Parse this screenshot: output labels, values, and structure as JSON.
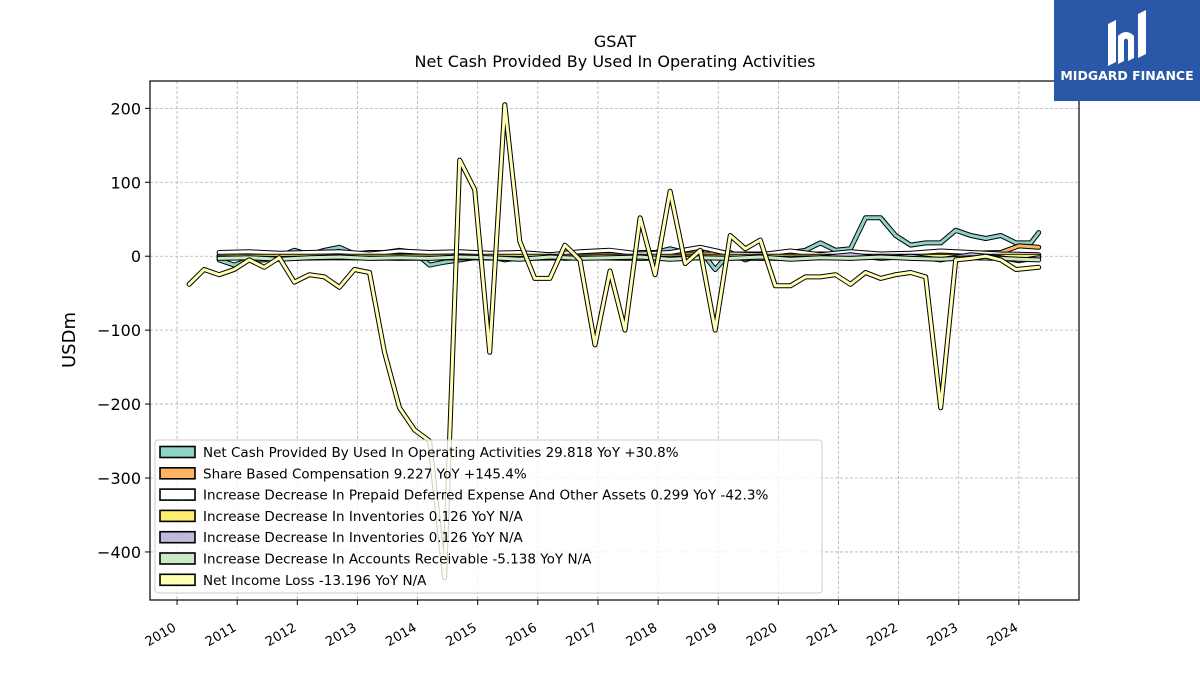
{
  "brand": {
    "name": "MIDGARD FINANCE",
    "color": "#2b57a8",
    "icon": "mf-monogram-icon"
  },
  "chart_data": {
    "type": "line",
    "title": "GSAT",
    "subtitle": "Net Cash Provided By Used In Operating Activities",
    "ylabel": "USDm",
    "xlabel": "",
    "xlim": [
      2009.55,
      2025.0
    ],
    "ylim": [
      -465,
      237
    ],
    "yticks": [
      200,
      100,
      0,
      -100,
      -200,
      -300,
      -400
    ],
    "ytick_labels": [
      "200",
      "100",
      "0",
      "−100",
      "−200",
      "−300",
      "−400"
    ],
    "xticks": [
      2010,
      2011,
      2012,
      2013,
      2014,
      2015,
      2016,
      2017,
      2018,
      2019,
      2020,
      2021,
      2022,
      2023,
      2024
    ],
    "xtick_labels": [
      "2010",
      "2011",
      "2012",
      "2013",
      "2014",
      "2015",
      "2016",
      "2017",
      "2018",
      "2019",
      "2020",
      "2021",
      "2022",
      "2023",
      "2024"
    ],
    "grid": true,
    "legend_position": "lower-left",
    "series": [
      {
        "name": "Net Cash Provided By Used In Operating Activities",
        "legend": "Net Cash Provided By Used In Operating Activities  29.818 YoY +30.8%",
        "color": "#8dd3c7",
        "x": [
          2010.7,
          2010.95,
          2011.2,
          2011.45,
          2011.7,
          2011.95,
          2012.2,
          2012.45,
          2012.7,
          2012.95,
          2013.2,
          2013.45,
          2013.7,
          2013.95,
          2014.2,
          2014.45,
          2014.7,
          2014.95,
          2015.2,
          2015.45,
          2015.7,
          2015.95,
          2016.2,
          2016.45,
          2016.7,
          2016.95,
          2017.2,
          2017.45,
          2017.7,
          2017.95,
          2018.2,
          2018.45,
          2018.7,
          2018.95,
          2019.2,
          2019.45,
          2019.7,
          2019.95,
          2020.2,
          2020.45,
          2020.7,
          2020.95,
          2021.2,
          2021.45,
          2021.7,
          2021.95,
          2022.2,
          2022.45,
          2022.7,
          2022.95,
          2023.2,
          2023.45,
          2023.7,
          2023.95,
          2024.2,
          2024.33
        ],
        "y": [
          -5,
          -12,
          -5,
          -5,
          0,
          8,
          2,
          8,
          12,
          3,
          5,
          5,
          8,
          5,
          -12,
          -8,
          -5,
          -2,
          0,
          -5,
          -2,
          2,
          0,
          -3,
          -2,
          5,
          2,
          0,
          5,
          5,
          10,
          5,
          8,
          -18,
          5,
          -5,
          2,
          -3,
          5,
          8,
          18,
          8,
          10,
          52,
          52,
          28,
          15,
          18,
          18,
          35,
          28,
          24,
          28,
          18,
          18,
          32
        ]
      },
      {
        "name": "Share Based Compensation",
        "legend": "Share Based Compensation  9.227 YoY +145.4%",
        "color": "#fdb462",
        "x": [
          2010.7,
          2011.7,
          2012.7,
          2013.7,
          2014.7,
          2015.7,
          2016.7,
          2017.7,
          2018.7,
          2019.7,
          2020.7,
          2021.7,
          2022.7,
          2023.2,
          2023.7,
          2024.0,
          2024.33
        ],
        "y": [
          1,
          1,
          1,
          1,
          1,
          2,
          2,
          2,
          3,
          3,
          3,
          3,
          3,
          4,
          5,
          14,
          12
        ]
      },
      {
        "name": "Increase Decrease In Prepaid Deferred Expense And Other Assets",
        "legend": "Increase Decrease In Prepaid Deferred Expense And Other Assets  0.299 YoY -42.3%",
        "color": "#ffffff",
        "x": [
          2010.7,
          2011.2,
          2011.7,
          2012.2,
          2012.7,
          2013.2,
          2013.7,
          2014.2,
          2014.7,
          2015.2,
          2015.7,
          2016.2,
          2016.7,
          2017.2,
          2017.7,
          2018.2,
          2018.7,
          2019.2,
          2019.7,
          2020.2,
          2020.7,
          2021.2,
          2021.7,
          2022.2,
          2022.7,
          2023.2,
          2023.7,
          2024.33
        ],
        "y": [
          5,
          6,
          4,
          5,
          6,
          3,
          7,
          5,
          6,
          4,
          5,
          2,
          6,
          8,
          3,
          5,
          12,
          3,
          2,
          7,
          2,
          6,
          3,
          4,
          7,
          5,
          3,
          2
        ]
      },
      {
        "name": "Increase Decrease In Inventories",
        "legend": "Increase Decrease In Inventories  0.126 YoY N/A",
        "color": "#ffed6f",
        "x": [
          2010.7,
          2011.7,
          2012.7,
          2013.7,
          2014.7,
          2015.7,
          2016.7,
          2017.7,
          2018.7,
          2019.7,
          2020.7,
          2021.7,
          2022.7,
          2023.7,
          2024.33
        ],
        "y": [
          0,
          0,
          0,
          0,
          0,
          0,
          0,
          0,
          0,
          0,
          0,
          0,
          0,
          0,
          0
        ]
      },
      {
        "name": "Increase Decrease In Inventories",
        "legend": "Increase Decrease In Inventories  0.126 YoY N/A",
        "color": "#bebada",
        "x": [
          2010.7,
          2011.7,
          2012.7,
          2013.7,
          2014.7,
          2015.7,
          2016.7,
          2017.7,
          2018.7,
          2019.7,
          2020.7,
          2021.2,
          2021.7,
          2022.2,
          2022.7,
          2023.2,
          2023.7,
          2024.0,
          2024.33
        ],
        "y": [
          -2,
          -3,
          -2,
          -3,
          -2,
          -3,
          -2,
          -3,
          -2,
          -3,
          -2,
          2,
          -3,
          0,
          -5,
          2,
          -2,
          -6,
          -2
        ]
      },
      {
        "name": "Increase Decrease In Accounts Receivable",
        "legend": "Increase Decrease In Accounts Receivable  -5.138 YoY N/A",
        "color": "#ccebc5",
        "x": [
          2010.7,
          2011.2,
          2011.7,
          2012.2,
          2012.7,
          2013.2,
          2013.7,
          2014.2,
          2014.7,
          2015.2,
          2015.7,
          2016.2,
          2016.7,
          2017.2,
          2017.7,
          2018.2,
          2018.7,
          2019.2,
          2019.7,
          2020.2,
          2020.7,
          2021.2,
          2021.7,
          2022.2,
          2022.7,
          2023.2,
          2023.7,
          2024.0,
          2024.33
        ],
        "y": [
          -3,
          -2,
          -4,
          -2,
          -1,
          -3,
          -2,
          -3,
          -1,
          -2,
          -4,
          -1,
          -3,
          -2,
          -1,
          -4,
          -2,
          -3,
          -1,
          -4,
          -2,
          -3,
          -1,
          -3,
          -4,
          -2,
          -3,
          -4,
          -5
        ]
      },
      {
        "name": "Net Income Loss",
        "legend": "Net Income Loss  -13.196 YoY N/A",
        "color": "#ffffb3",
        "x": [
          2010.2,
          2010.45,
          2010.7,
          2010.95,
          2011.2,
          2011.45,
          2011.7,
          2011.95,
          2012.2,
          2012.45,
          2012.7,
          2012.95,
          2013.2,
          2013.45,
          2013.7,
          2013.95,
          2014.2,
          2014.45,
          2014.7,
          2014.95,
          2015.2,
          2015.45,
          2015.7,
          2015.95,
          2016.2,
          2016.45,
          2016.7,
          2016.95,
          2017.2,
          2017.45,
          2017.7,
          2017.95,
          2018.2,
          2018.45,
          2018.7,
          2018.95,
          2019.2,
          2019.45,
          2019.7,
          2019.95,
          2020.2,
          2020.45,
          2020.7,
          2020.95,
          2021.2,
          2021.45,
          2021.7,
          2021.95,
          2022.2,
          2022.45,
          2022.7,
          2022.95,
          2023.2,
          2023.45,
          2023.7,
          2023.95,
          2024.33
        ],
        "y": [
          -38,
          -18,
          -25,
          -18,
          -5,
          -15,
          -2,
          -35,
          -25,
          -28,
          -42,
          -18,
          -22,
          -130,
          -205,
          -235,
          -250,
          -435,
          130,
          90,
          -130,
          205,
          20,
          -30,
          -30,
          15,
          -5,
          -120,
          -20,
          -100,
          52,
          -25,
          88,
          -10,
          8,
          -100,
          28,
          10,
          22,
          -40,
          -40,
          -28,
          -28,
          -25,
          -38,
          -22,
          -30,
          -25,
          -22,
          -28,
          -205,
          -5,
          -3,
          0,
          -5,
          -18,
          -15
        ]
      }
    ]
  }
}
